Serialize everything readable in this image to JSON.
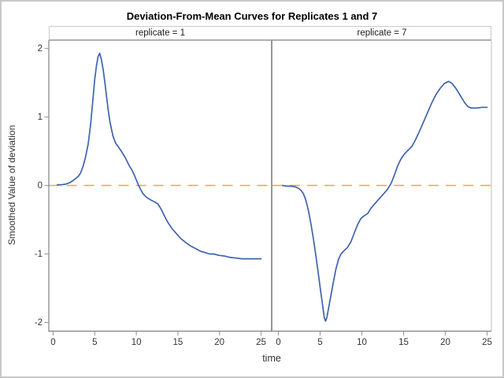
{
  "chart_data": {
    "type": "line",
    "title": "Deviation-From-Mean Curves for Replicates 1 and 7",
    "xlabel": "time",
    "ylabel": "Smoothed Value of deviation",
    "x_ticks": [
      0,
      5,
      10,
      15,
      20,
      25
    ],
    "y_ticks": [
      2,
      1,
      0,
      -1,
      -2
    ],
    "xlim": [
      0,
      25
    ],
    "ylim": [
      -2.1,
      2.1
    ],
    "grid": false,
    "legend": "none",
    "series_color": "#3E63AE",
    "refline": {
      "y": 0,
      "style": "dash",
      "color": "#FFA31E"
    },
    "panels": [
      {
        "header": "replicate = 1",
        "points": [
          [
            0.5,
            0.01
          ],
          [
            1,
            0.01
          ],
          [
            1.5,
            0.02
          ],
          [
            2,
            0.04
          ],
          [
            2.5,
            0.08
          ],
          [
            3,
            0.13
          ],
          [
            3.3,
            0.18
          ],
          [
            3.6,
            0.28
          ],
          [
            3.9,
            0.42
          ],
          [
            4.2,
            0.6
          ],
          [
            4.5,
            0.88
          ],
          [
            4.8,
            1.28
          ],
          [
            5,
            1.55
          ],
          [
            5.2,
            1.74
          ],
          [
            5.4,
            1.88
          ],
          [
            5.6,
            1.93
          ],
          [
            5.8,
            1.84
          ],
          [
            6,
            1.7
          ],
          [
            6.2,
            1.52
          ],
          [
            6.4,
            1.32
          ],
          [
            6.6,
            1.12
          ],
          [
            6.8,
            0.95
          ],
          [
            7,
            0.83
          ],
          [
            7.2,
            0.72
          ],
          [
            7.5,
            0.62
          ],
          [
            7.8,
            0.57
          ],
          [
            8.2,
            0.5
          ],
          [
            8.7,
            0.4
          ],
          [
            9.1,
            0.3
          ],
          [
            9.5,
            0.22
          ],
          [
            9.8,
            0.14
          ],
          [
            10.1,
            0.05
          ],
          [
            10.4,
            -0.03
          ],
          [
            10.8,
            -0.12
          ],
          [
            11.2,
            -0.17
          ],
          [
            11.7,
            -0.21
          ],
          [
            12.2,
            -0.24
          ],
          [
            12.6,
            -0.27
          ],
          [
            13,
            -0.35
          ],
          [
            13.4,
            -0.45
          ],
          [
            13.8,
            -0.54
          ],
          [
            14.3,
            -0.63
          ],
          [
            14.8,
            -0.7
          ],
          [
            15.3,
            -0.77
          ],
          [
            15.9,
            -0.83
          ],
          [
            16.5,
            -0.88
          ],
          [
            17.1,
            -0.92
          ],
          [
            17.7,
            -0.96
          ],
          [
            18.3,
            -0.98
          ],
          [
            18.8,
            -1.0
          ],
          [
            19.3,
            -1.0
          ],
          [
            19.9,
            -1.02
          ],
          [
            20.6,
            -1.03
          ],
          [
            21.3,
            -1.05
          ],
          [
            22,
            -1.06
          ],
          [
            22.7,
            -1.07
          ],
          [
            23.5,
            -1.07
          ],
          [
            24.2,
            -1.07
          ],
          [
            25,
            -1.07
          ]
        ]
      },
      {
        "header": "replicate = 7",
        "points": [
          [
            0.5,
            0
          ],
          [
            1,
            -0.01
          ],
          [
            1.5,
            -0.01
          ],
          [
            2,
            -0.02
          ],
          [
            2.4,
            -0.04
          ],
          [
            2.7,
            -0.07
          ],
          [
            3,
            -0.12
          ],
          [
            3.3,
            -0.22
          ],
          [
            3.6,
            -0.37
          ],
          [
            3.9,
            -0.56
          ],
          [
            4.2,
            -0.78
          ],
          [
            4.5,
            -1.03
          ],
          [
            4.8,
            -1.3
          ],
          [
            5.1,
            -1.58
          ],
          [
            5.3,
            -1.75
          ],
          [
            5.5,
            -1.93
          ],
          [
            5.65,
            -1.98
          ],
          [
            5.8,
            -1.93
          ],
          [
            6,
            -1.8
          ],
          [
            6.3,
            -1.6
          ],
          [
            6.6,
            -1.4
          ],
          [
            6.9,
            -1.22
          ],
          [
            7.2,
            -1.08
          ],
          [
            7.5,
            -1.0
          ],
          [
            7.9,
            -0.95
          ],
          [
            8.3,
            -0.9
          ],
          [
            8.7,
            -0.82
          ],
          [
            9.1,
            -0.69
          ],
          [
            9.5,
            -0.57
          ],
          [
            9.9,
            -0.48
          ],
          [
            10.3,
            -0.44
          ],
          [
            10.7,
            -0.41
          ],
          [
            11.1,
            -0.33
          ],
          [
            11.6,
            -0.26
          ],
          [
            12.1,
            -0.19
          ],
          [
            12.7,
            -0.11
          ],
          [
            13.1,
            -0.05
          ],
          [
            13.5,
            0.03
          ],
          [
            13.9,
            0.15
          ],
          [
            14.3,
            0.29
          ],
          [
            14.7,
            0.39
          ],
          [
            15.1,
            0.46
          ],
          [
            15.5,
            0.51
          ],
          [
            16,
            0.57
          ],
          [
            16.4,
            0.66
          ],
          [
            16.9,
            0.79
          ],
          [
            17.4,
            0.93
          ],
          [
            17.9,
            1.07
          ],
          [
            18.4,
            1.21
          ],
          [
            18.9,
            1.33
          ],
          [
            19.4,
            1.42
          ],
          [
            19.9,
            1.49
          ],
          [
            20.4,
            1.52
          ],
          [
            20.8,
            1.49
          ],
          [
            21.3,
            1.41
          ],
          [
            21.8,
            1.31
          ],
          [
            22.3,
            1.21
          ],
          [
            22.7,
            1.15
          ],
          [
            23.1,
            1.13
          ],
          [
            23.8,
            1.13
          ],
          [
            24.4,
            1.14
          ],
          [
            25,
            1.14
          ]
        ]
      }
    ],
    "colors": {
      "header_fill": "#f7f8fb",
      "header_divider": "#d2d2d2",
      "panel_divider": "#969696",
      "axis_line": "#818181",
      "tick_mark": "#9d9d9d",
      "wall_border": "#c9c9c9",
      "text": "#333333"
    }
  }
}
